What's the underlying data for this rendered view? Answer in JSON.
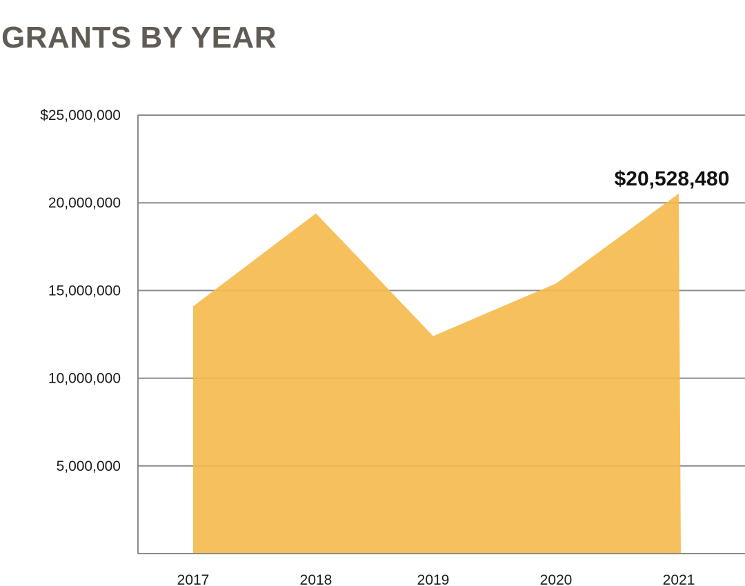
{
  "chart_data": {
    "type": "area",
    "title": "GRANTS BY YEAR",
    "x": [
      "2017",
      "2018",
      "2019",
      "2020",
      "2021"
    ],
    "series": [
      {
        "values": [
          14100000,
          19400000,
          12400000,
          15400000,
          20528480
        ]
      }
    ],
    "ylim": [
      0,
      25000000
    ],
    "yticks": [
      5000000,
      10000000,
      15000000,
      20000000,
      25000000
    ],
    "ytick_labels": [
      "5,000,000",
      "10,000,000",
      "15,000,000",
      "20,000,000",
      "$25,000,000"
    ],
    "annotation": {
      "x": "2021",
      "text": "$20,528,480"
    },
    "grid": true,
    "colors": {
      "area": "#f5b94a",
      "grid": "#8a8a8a",
      "title": "#605b55"
    }
  }
}
